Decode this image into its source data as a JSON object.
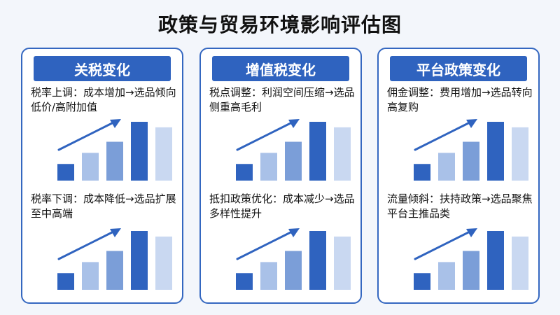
{
  "title": "政策与贸易环境影响评估图",
  "panels": [
    {
      "header": "关税变化",
      "top_note": "税率上调：成本增加→选品倾向低价/高附加值",
      "bottom_note": "税率下调：成本降低→选品扩展至中高端"
    },
    {
      "header": "增值税变化",
      "top_note": "税点调整：利润空间压缩→选品侧重高毛利",
      "bottom_note": "抵扣政策优化：成本减少→选品多样性提升"
    },
    {
      "header": "平台政策变化",
      "top_note": "佣金调整：费用增加→选品转向高复购",
      "bottom_note": "流量倾斜：扶持政策→选品聚焦平台主推品类"
    }
  ],
  "chart_data": {
    "type": "bar",
    "note": "identical decorative rising bar chart repeated six times, no axes or labels",
    "values": [
      1.5,
      2.5,
      3.5,
      5.3,
      4.8
    ],
    "bar_colors": [
      "#2f63bf",
      "#a9c1e8",
      "#7b9ed8",
      "#2f63bf",
      "#c9d8f1"
    ],
    "trend_arrow": "rising",
    "accent": "#2f63bf"
  }
}
